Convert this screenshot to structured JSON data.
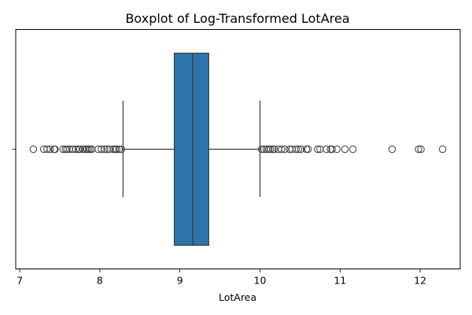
{
  "chart_data": {
    "type": "boxplot",
    "title": "Boxplot of Log-Transformed LotArea",
    "xlabel": "LotArea",
    "ylabel": "",
    "orientation": "horizontal",
    "xlim": [
      6.95,
      12.5
    ],
    "x_ticks": [
      7,
      8,
      9,
      10,
      11,
      12
    ],
    "grid": false,
    "box": {
      "q1": 8.93,
      "median": 9.16,
      "q3": 9.36,
      "whisker_low": 8.29,
      "whisker_high": 10.0
    },
    "outliers": [
      7.17,
      7.3,
      7.34,
      7.38,
      7.43,
      7.44,
      7.54,
      7.57,
      7.59,
      7.62,
      7.66,
      7.7,
      7.73,
      7.75,
      7.79,
      7.82,
      7.84,
      7.86,
      7.88,
      7.9,
      7.98,
      8.02,
      8.06,
      8.09,
      8.12,
      8.17,
      8.19,
      8.21,
      8.24,
      8.27,
      10.02,
      10.05,
      10.08,
      10.11,
      10.13,
      10.16,
      10.18,
      10.23,
      10.27,
      10.31,
      10.37,
      10.4,
      10.45,
      10.48,
      10.51,
      10.58,
      10.6,
      10.72,
      10.75,
      10.83,
      10.88,
      10.9,
      10.96,
      11.06,
      11.16,
      11.65,
      11.98,
      12.01,
      12.28
    ],
    "colors": {
      "box_fill": "#2f73ab",
      "line": "#3d3d3d",
      "axis": "#000000"
    }
  }
}
